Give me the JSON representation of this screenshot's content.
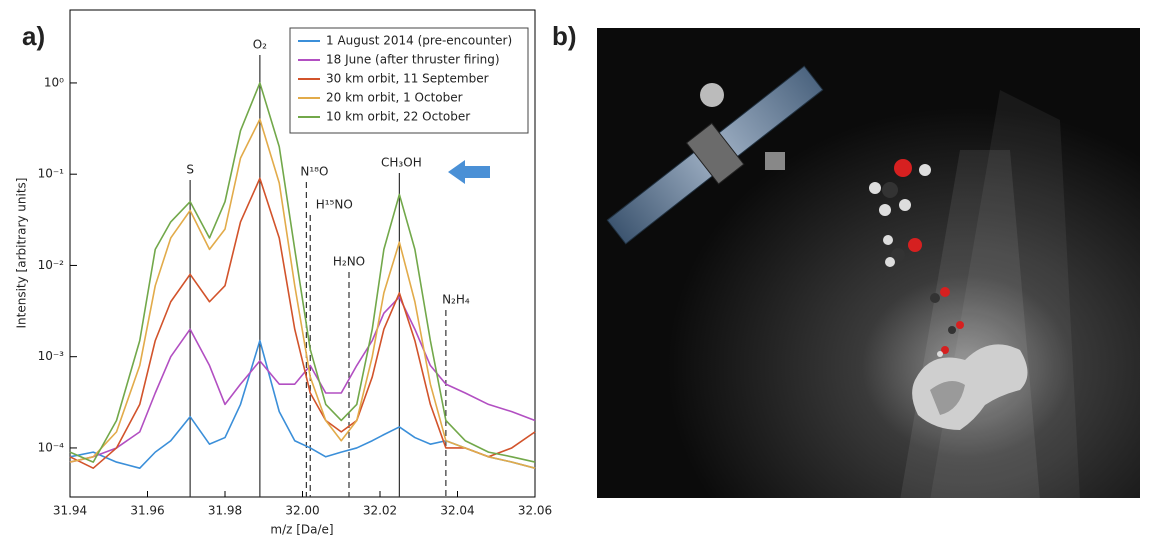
{
  "panels": {
    "a": "a)",
    "b": "b)"
  },
  "chart_data": {
    "type": "line",
    "xlabel": "m/z [Da/e]",
    "ylabel": "Intensity [arbitrary units]",
    "ylog": true,
    "x": [
      31.94,
      31.946,
      31.952,
      31.958,
      31.962,
      31.966,
      31.971,
      31.976,
      31.98,
      31.984,
      31.989,
      31.994,
      31.998,
      32.002,
      32.006,
      32.01,
      32.014,
      32.018,
      32.021,
      32.025,
      32.029,
      32.033,
      32.037,
      32.042,
      32.048,
      32.054,
      32.06
    ],
    "xlim": [
      31.94,
      32.06
    ],
    "xticks": [
      31.94,
      31.96,
      31.98,
      {
        "value": 32,
        "label": "32.00"
      },
      32.02,
      32.04,
      32.06
    ],
    "ylim": [
      2.9e-05,
      6.3
    ],
    "yticks": [
      {
        "value": 0.0001,
        "label": "10⁻⁴"
      },
      {
        "value": 0.001,
        "label": "10⁻³"
      },
      {
        "value": 0.01,
        "label": "10⁻²"
      },
      {
        "value": 0.1,
        "label": "10⁻¹"
      },
      {
        "value": 1,
        "label": "10⁰"
      }
    ],
    "legend": "upper right",
    "series": [
      {
        "name": "1 August 2014 (pre-encounter)",
        "color": "#3b8fd9",
        "values": [
          8e-05,
          9e-05,
          7e-05,
          6e-05,
          9e-05,
          0.00012,
          0.00022,
          0.00011,
          0.00013,
          0.0003,
          0.0015,
          0.00025,
          0.00012,
          0.0001,
          8e-05,
          9e-05,
          0.0001,
          0.00012,
          0.00014,
          0.00017,
          0.00013,
          0.00011,
          0.00012,
          0.0001,
          8e-05,
          7e-05,
          6e-05
        ]
      },
      {
        "name": "18 June (after thruster firing)",
        "color": "#b24fc2",
        "values": [
          7e-05,
          8e-05,
          0.0001,
          0.00015,
          0.0004,
          0.001,
          0.002,
          0.0008,
          0.0003,
          0.0005,
          0.0009,
          0.0005,
          0.0005,
          0.0008,
          0.0004,
          0.0004,
          0.0008,
          0.0015,
          0.003,
          0.0045,
          0.002,
          0.0008,
          0.0005,
          0.0004,
          0.0003,
          0.00025,
          0.0002
        ]
      },
      {
        "name": "30 km orbit, 11 September",
        "color": "#d2532b",
        "values": [
          8e-05,
          6e-05,
          0.0001,
          0.0003,
          0.0015,
          0.004,
          0.008,
          0.004,
          0.006,
          0.03,
          0.09,
          0.02,
          0.002,
          0.0004,
          0.0002,
          0.00015,
          0.0002,
          0.0006,
          0.002,
          0.005,
          0.0015,
          0.0003,
          0.0001,
          0.0001,
          8e-05,
          0.0001,
          0.00015
        ]
      },
      {
        "name": "20 km orbit, 1 October",
        "color": "#e2ab4a",
        "values": [
          7e-05,
          8e-05,
          0.00015,
          0.0008,
          0.006,
          0.02,
          0.04,
          0.015,
          0.025,
          0.15,
          0.4,
          0.08,
          0.006,
          0.0006,
          0.0002,
          0.00012,
          0.0002,
          0.001,
          0.005,
          0.018,
          0.004,
          0.0005,
          0.00012,
          0.0001,
          8e-05,
          7e-05,
          6e-05
        ]
      },
      {
        "name": "10 km orbit, 22 October",
        "color": "#72a84a",
        "values": [
          9e-05,
          7e-05,
          0.0002,
          0.0015,
          0.015,
          0.03,
          0.05,
          0.02,
          0.05,
          0.3,
          1,
          0.2,
          0.015,
          0.0012,
          0.0003,
          0.0002,
          0.0003,
          0.002,
          0.015,
          0.06,
          0.015,
          0.0015,
          0.0002,
          0.00012,
          9e-05,
          8e-05,
          7e-05
        ]
      }
    ],
    "annotations": [
      {
        "text": "S",
        "x": 31.971,
        "style": "solid"
      },
      {
        "text": "O₂",
        "x": 31.989,
        "style": "solid"
      },
      {
        "text": "N¹⁸O",
        "x": 32.001,
        "style": "dashed"
      },
      {
        "text": "H¹⁵NO",
        "x": 32.002,
        "style": "dashed"
      },
      {
        "text": "H₂NO",
        "x": 32.012,
        "style": "dashed"
      },
      {
        "text": "CH₃OH",
        "x": 32.025,
        "style": "solid"
      },
      {
        "text": "N₂H₄",
        "x": 32.037,
        "style": "dashed"
      }
    ]
  }
}
